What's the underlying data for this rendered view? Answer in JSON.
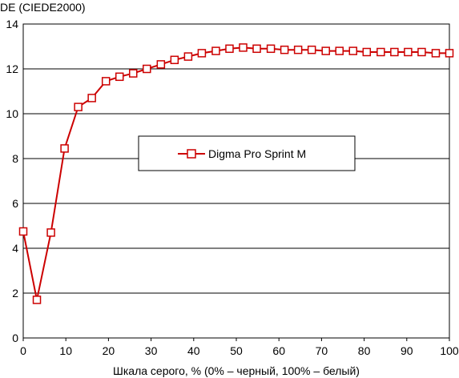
{
  "chart_data": {
    "type": "line",
    "ylabel": "DE (CIEDE2000)",
    "xlabel": "Шкала серого, % (0% – черный, 100% – белый)",
    "xlim": [
      0,
      100
    ],
    "ylim": [
      0,
      14
    ],
    "xticks": [
      0,
      10,
      20,
      30,
      40,
      50,
      60,
      70,
      80,
      90,
      100
    ],
    "yticks": [
      0,
      2,
      4,
      6,
      8,
      10,
      12,
      14
    ],
    "grid": "horizontal",
    "legend_position": "center",
    "series": [
      {
        "name": "Digma Pro Sprint M",
        "color": "#cc0000",
        "marker": "open-square",
        "x": [
          0,
          3.2,
          6.5,
          9.7,
          12.9,
          16.1,
          19.4,
          22.6,
          25.8,
          29.0,
          32.3,
          35.5,
          38.7,
          41.9,
          45.2,
          48.4,
          51.6,
          54.8,
          58.1,
          61.3,
          64.5,
          67.7,
          71.0,
          74.2,
          77.4,
          80.6,
          83.9,
          87.1,
          90.3,
          93.5,
          96.8,
          100
        ],
        "y": [
          4.75,
          1.7,
          4.7,
          8.45,
          10.3,
          10.7,
          11.45,
          11.65,
          11.8,
          12.0,
          12.2,
          12.4,
          12.55,
          12.7,
          12.8,
          12.9,
          12.95,
          12.9,
          12.9,
          12.85,
          12.85,
          12.85,
          12.8,
          12.8,
          12.8,
          12.75,
          12.75,
          12.75,
          12.75,
          12.75,
          12.7,
          12.7
        ]
      }
    ]
  }
}
